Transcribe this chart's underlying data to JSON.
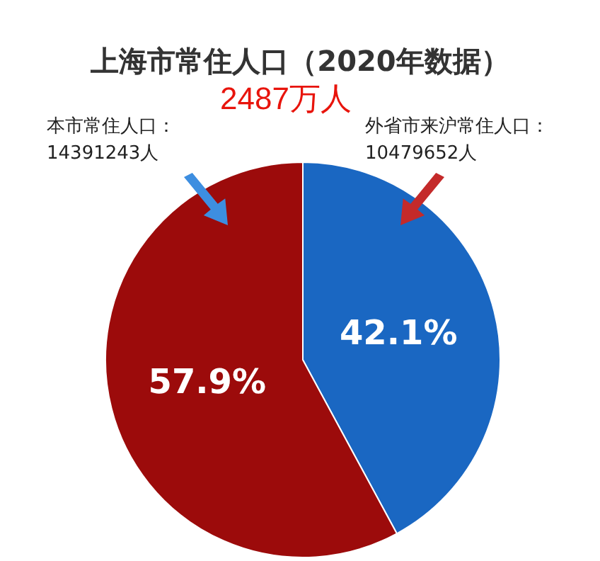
{
  "chart_data": {
    "type": "pie",
    "title": "上海市常住人口（2020年数据）",
    "categories": [
      "外省市来沪常住人口",
      "本市常住人口"
    ],
    "values": [
      42.1,
      57.9
    ],
    "colors": [
      "#1a67c2",
      "#9c0b0b"
    ],
    "value_labels": [
      "42.1%",
      "57.9%"
    ],
    "annotations": [
      "2487万人",
      "10479652人",
      "14391243人",
      "：",
      "："
    ],
    "legend": false
  }
}
